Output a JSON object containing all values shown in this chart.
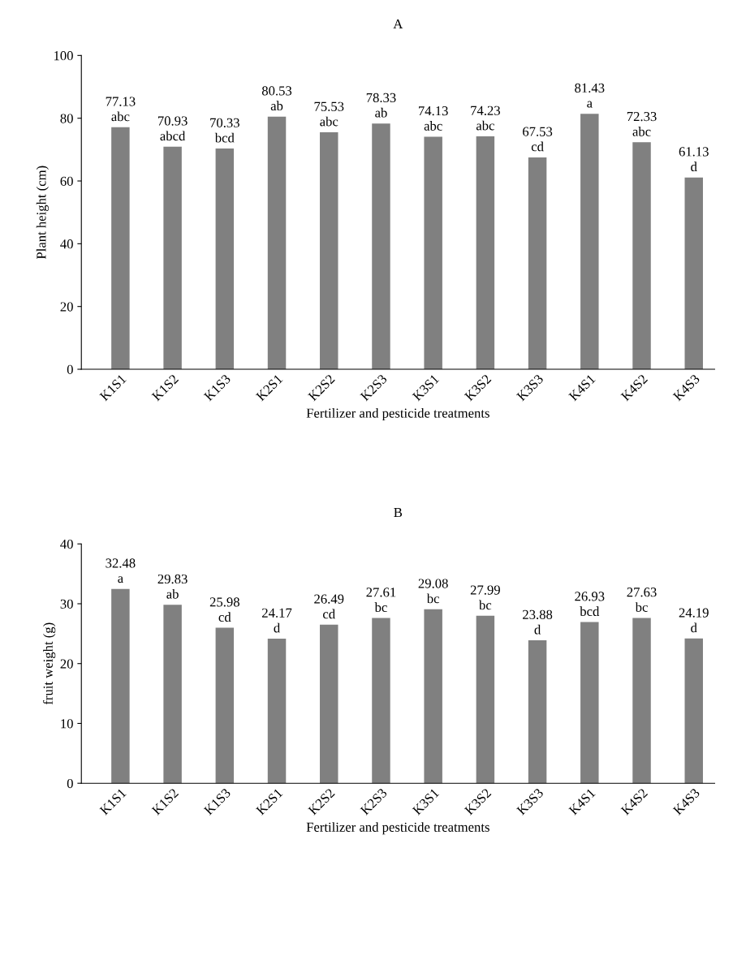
{
  "chart_data": [
    {
      "type": "bar",
      "title": "A",
      "xlabel": "Fertilizer and pesticide treatments",
      "ylabel": "Plant height (cm)",
      "categories": [
        "K1S1",
        "K1S2",
        "K1S3",
        "K2S1",
        "K2S2",
        "K2S3",
        "K3S1",
        "K3S2",
        "K3S3",
        "K4S1",
        "K4S2",
        "K4S3"
      ],
      "values": [
        77.13,
        70.93,
        70.33,
        80.53,
        75.53,
        78.33,
        74.13,
        74.23,
        67.53,
        81.43,
        72.33,
        61.13
      ],
      "value_labels": [
        "77.13\nabc",
        "70.93\nabcd",
        "70.33\nbcd",
        "80.53\nab",
        "75.53\nabc",
        "78.33\nab",
        "74.13\nabc",
        "74.23\nabc",
        "67.53\ncd",
        "81.43\na",
        "72.33\nabc",
        "61.13\nd"
      ],
      "color": "#808080",
      "ylim": [
        0,
        100
      ],
      "yticks": [
        0,
        20,
        40,
        60,
        80,
        100
      ],
      "grid": false,
      "legend": false
    },
    {
      "type": "bar",
      "title": "B",
      "xlabel": "Fertilizer and pesticide treatments",
      "ylabel": "fruit weight (g)",
      "categories": [
        "K1S1",
        "K1S2",
        "K1S3",
        "K2S1",
        "K2S2",
        "K2S3",
        "K3S1",
        "K3S2",
        "K3S3",
        "K4S1",
        "K4S2",
        "K4S3"
      ],
      "values": [
        32.48,
        29.83,
        25.98,
        24.17,
        26.49,
        27.61,
        29.08,
        27.99,
        23.88,
        26.93,
        27.63,
        24.19
      ],
      "value_labels": [
        "32.48\na",
        "29.83\nab",
        "25.98\ncd",
        "24.17\nd",
        "26.49\ncd",
        "27.61\nbc",
        "29.08\nbc",
        "27.99\nbc",
        "23.88\nd",
        "26.93\nbcd",
        "27.63\nbc",
        "24.19\nd"
      ],
      "color": "#808080",
      "ylim": [
        0,
        40
      ],
      "yticks": [
        0,
        10,
        20,
        30,
        40
      ],
      "grid": false,
      "legend": false
    }
  ]
}
